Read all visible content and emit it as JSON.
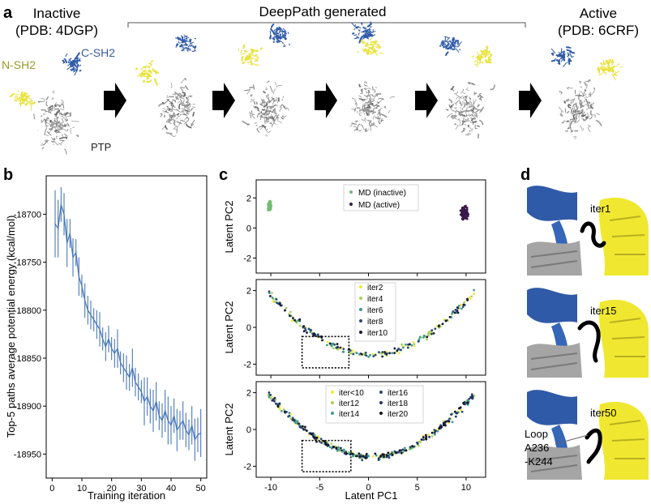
{
  "panel_a": {
    "label": "a",
    "inactive_title": [
      "Inactive",
      "(PDB: 4DGP)"
    ],
    "generated_title": "DeepPath generated",
    "active_title": [
      "Active",
      "(PDB: 6CRF)"
    ],
    "nsh2_label": "N-SH2",
    "csh2_label": "C-SH2",
    "ptp_label": "PTP",
    "colors": {
      "csh2": "#2f5aa8",
      "nsh2": "#e8e23a",
      "ptp": "#8a8a8a",
      "nsh2_text": "#9a9a2a",
      "csh2_text": "#3a5aa0"
    }
  },
  "panel_b": {
    "label": "b"
  },
  "panel_c": {
    "label": "c"
  },
  "panel_d": {
    "label": "d",
    "items": [
      {
        "iter": "iter1"
      },
      {
        "iter": "iter15"
      },
      {
        "iter": "iter50"
      }
    ],
    "loop_label": [
      "Loop",
      "A236",
      "-K244"
    ]
  },
  "chart_data": [
    {
      "type": "line",
      "xlabel": "Training iteration",
      "ylabel": "Top-5 paths average potential energy (kcal/mol)",
      "xlim": [
        -2,
        52
      ],
      "ylim": [
        -18975,
        -18660
      ],
      "xticks": [
        0,
        10,
        20,
        30,
        40,
        50
      ],
      "yticks": [
        -18950,
        -18900,
        -18850,
        -18800,
        -18750,
        -18700
      ],
      "color": "#4a78b8",
      "x": [
        1,
        2,
        3,
        4,
        5,
        6,
        7,
        8,
        9,
        10,
        11,
        12,
        13,
        14,
        15,
        16,
        17,
        18,
        19,
        20,
        21,
        22,
        23,
        24,
        25,
        26,
        27,
        28,
        29,
        30,
        31,
        32,
        33,
        34,
        35,
        36,
        37,
        38,
        39,
        40,
        41,
        42,
        43,
        44,
        45,
        46,
        47,
        48,
        49,
        50
      ],
      "values": [
        -18710,
        -18715,
        -18690,
        -18700,
        -18730,
        -18720,
        -18745,
        -18740,
        -18765,
        -18775,
        -18790,
        -18800,
        -18805,
        -18810,
        -18815,
        -18820,
        -18830,
        -18838,
        -18830,
        -18840,
        -18845,
        -18840,
        -18855,
        -18860,
        -18865,
        -18870,
        -18860,
        -18875,
        -18880,
        -18885,
        -18895,
        -18890,
        -18900,
        -18905,
        -18895,
        -18910,
        -18915,
        -18905,
        -18915,
        -18920,
        -18910,
        -18925,
        -18920,
        -18915,
        -18925,
        -18930,
        -18920,
        -18935,
        -18930,
        -18928
      ],
      "errors": [
        35,
        30,
        18,
        22,
        25,
        15,
        20,
        14,
        20,
        12,
        18,
        15,
        15,
        12,
        15,
        18,
        12,
        15,
        14,
        12,
        15,
        20,
        12,
        15,
        18,
        14,
        20,
        15,
        14,
        12,
        25,
        20,
        18,
        22,
        20,
        15,
        18,
        22,
        25,
        20,
        18,
        22,
        15,
        20,
        18,
        16,
        20,
        22,
        18,
        25
      ]
    },
    {
      "type": "scatter",
      "ylabel": "Latent PC2",
      "xlim": [
        -11.5,
        12
      ],
      "ylim": [
        -3.0,
        3.2
      ],
      "yticks": [
        -2,
        0,
        2
      ],
      "xticks": [
        -10,
        -5,
        0,
        5,
        10
      ],
      "legend": "top-center",
      "series": [
        {
          "name": "MD (inactive)",
          "color": "#6fbf6f",
          "center": [
            -10.1,
            1.45
          ],
          "spread": [
            0.25,
            0.45
          ],
          "n": 60
        },
        {
          "name": "MD (active)",
          "color": "#3a1a4a",
          "center": [
            9.8,
            1.0
          ],
          "spread": [
            0.55,
            0.65
          ],
          "n": 110
        }
      ]
    },
    {
      "type": "scatter",
      "ylabel": "Latent PC2",
      "xlim": [
        -11.5,
        12
      ],
      "ylim": [
        -2.6,
        2.6
      ],
      "yticks": [
        -2,
        0,
        2
      ],
      "xticks": [
        -10,
        -5,
        0,
        5,
        10
      ],
      "legend": "top-center",
      "series": [
        {
          "name": "iter2",
          "color": "#f2e83a"
        },
        {
          "name": "iter4",
          "color": "#a8d060"
        },
        {
          "name": "iter6",
          "color": "#3f9a8a"
        },
        {
          "name": "iter8",
          "color": "#2a4a7a"
        },
        {
          "name": "iter10",
          "color": "#1a1a3a"
        }
      ],
      "box": {
        "x": [
          -6.8,
          -2.0
        ],
        "y": [
          -2.2,
          -0.5
        ]
      }
    },
    {
      "type": "scatter",
      "xlabel": "Latent PC1",
      "ylabel": "Latent PC2",
      "xlim": [
        -11.5,
        12
      ],
      "ylim": [
        -2.6,
        2.6
      ],
      "yticks": [
        -2,
        0,
        2
      ],
      "xticks": [
        -10,
        -5,
        0,
        5,
        10
      ],
      "legend": "top-center",
      "series": [
        {
          "name": "iter<10",
          "color": "#f2e83a"
        },
        {
          "name": "iter12",
          "color": "#a8d060"
        },
        {
          "name": "iter14",
          "color": "#3f9a8a"
        },
        {
          "name": "iter16",
          "color": "#2a4a7a"
        },
        {
          "name": "iter18",
          "color": "#253566"
        },
        {
          "name": "iter20",
          "color": "#141428"
        }
      ],
      "box": {
        "x": [
          -6.8,
          -1.8
        ],
        "y": [
          -2.3,
          -0.6
        ]
      }
    }
  ]
}
